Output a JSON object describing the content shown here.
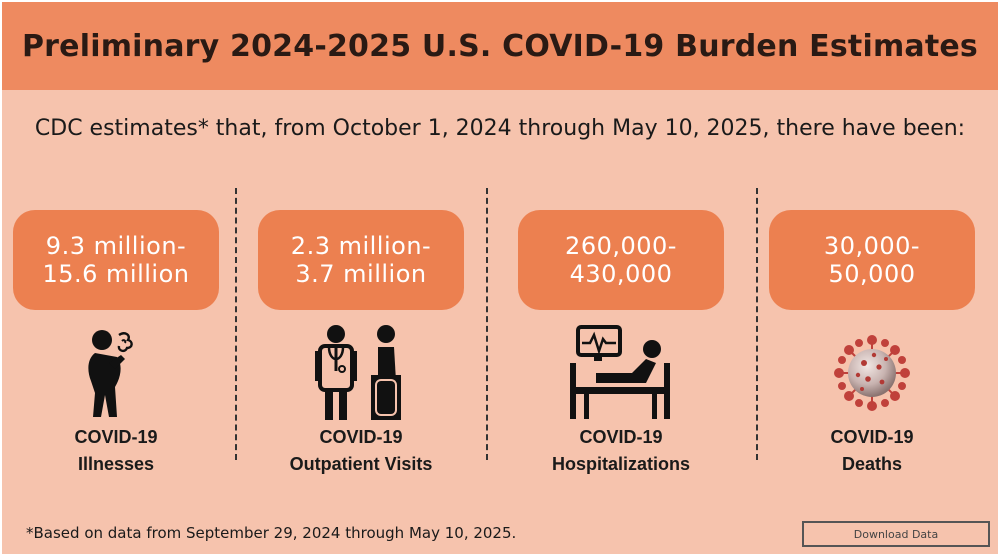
{
  "header": {
    "title": "Preliminary 2024-2025 U.S. COVID-19 Burden Estimates"
  },
  "subtitle": "CDC estimates* that, from October 1, 2024 through May 10, 2025, there have been:",
  "colors": {
    "header_bg": "#ee8a60",
    "panel_bg": "#f6c3ad",
    "badge_bg": "#ec8050",
    "virus_red": "#c0413b"
  },
  "estimates": [
    {
      "line1": "9.3 million-",
      "line2": "15.6 million",
      "label1": "COVID-19",
      "label2": "Illnesses",
      "icon": "coughing-person-icon"
    },
    {
      "line1": "2.3 million-",
      "line2": "3.7 million",
      "label1": "COVID-19",
      "label2": "Outpatient Visits",
      "icon": "doctor-patient-icon"
    },
    {
      "line1": "260,000-",
      "line2": "430,000",
      "label1": "COVID-19",
      "label2": "Hospitalizations",
      "icon": "hospital-bed-icon"
    },
    {
      "line1": "30,000-",
      "line2": "50,000",
      "label1": "COVID-19",
      "label2": "Deaths",
      "icon": "virus-icon"
    }
  ],
  "footnote": "*Based on data from September 29, 2024 through May 10, 2025.",
  "download": {
    "label": "Download Data"
  }
}
